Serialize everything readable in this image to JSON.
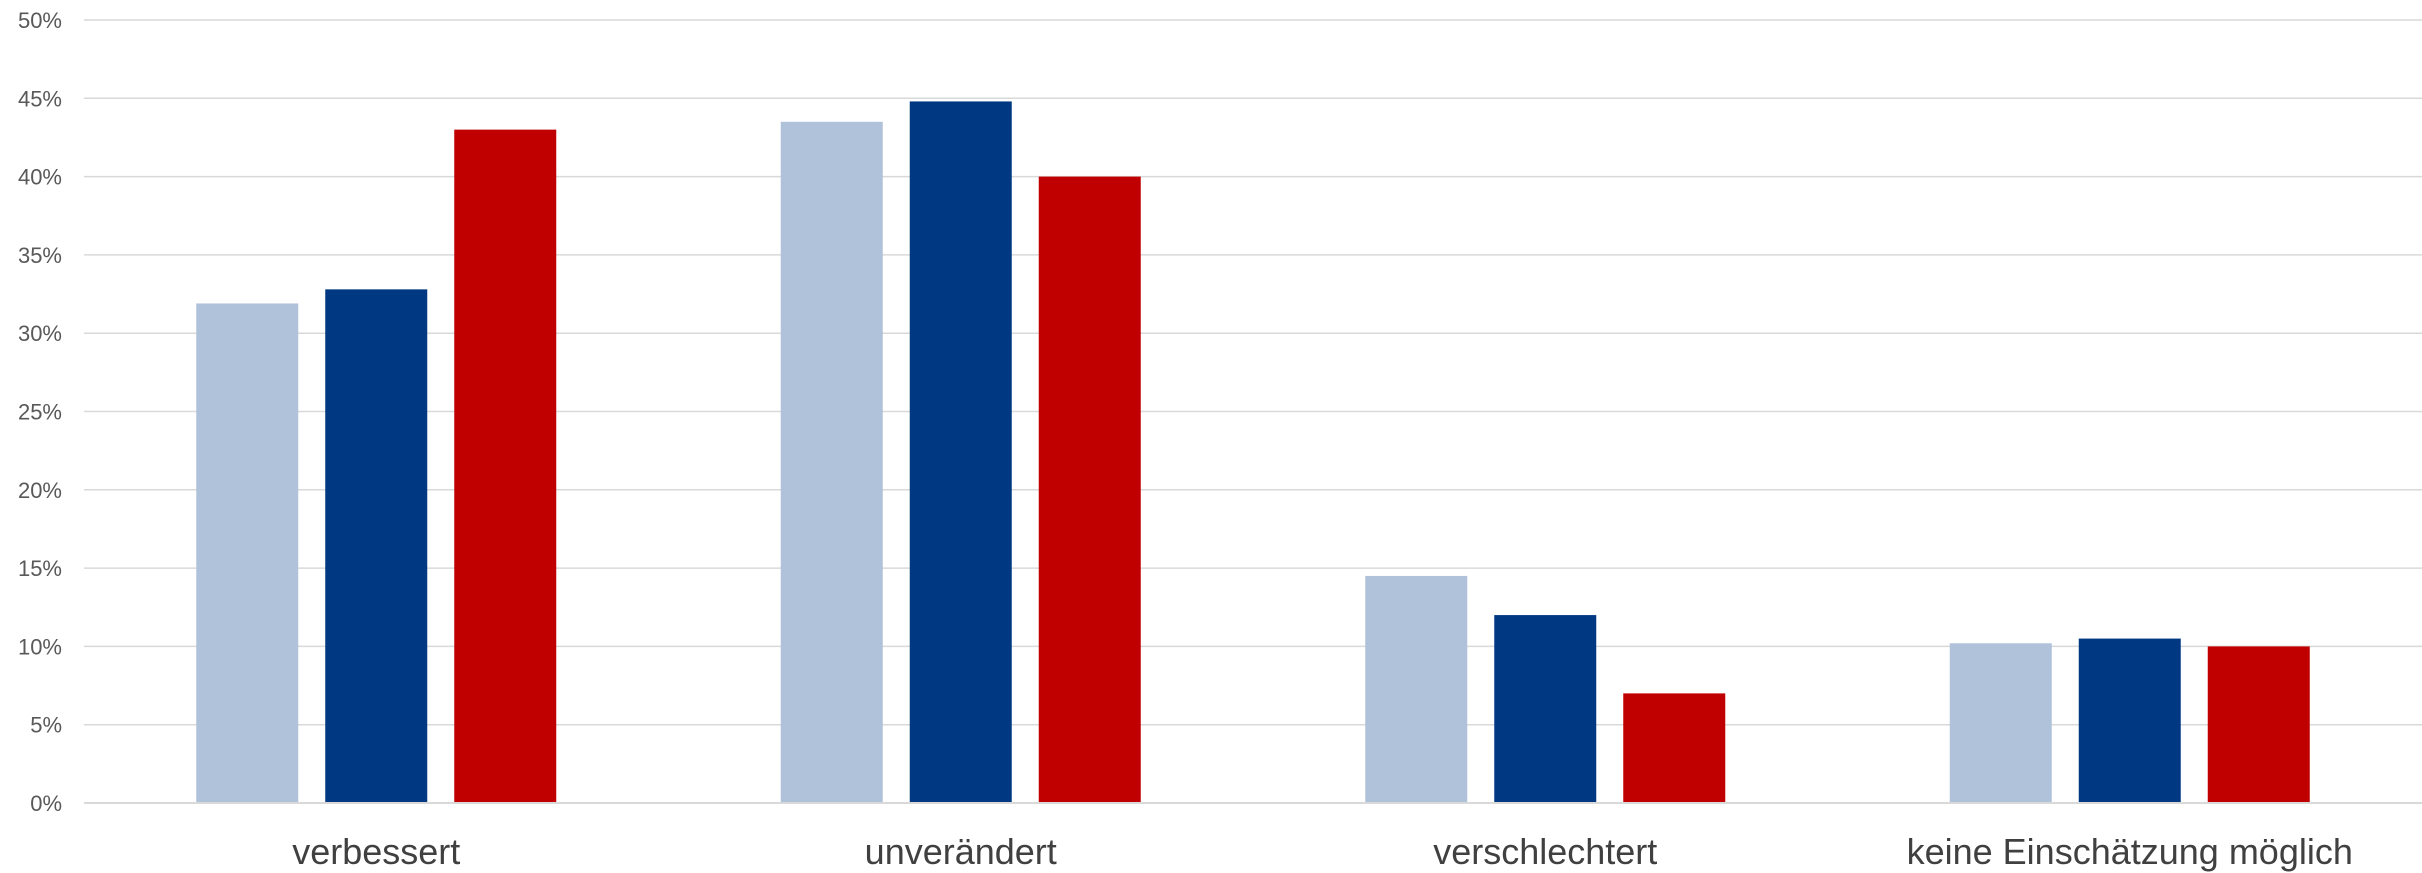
{
  "chart_data": {
    "type": "bar",
    "categories": [
      "verbessert",
      "unverändert",
      "verschlechtert",
      "keine Einschätzung möglich"
    ],
    "series": [
      {
        "values": [
          31.9,
          43.5,
          14.5,
          10.2
        ],
        "color": "#b0c1da"
      },
      {
        "values": [
          32.8,
          44.8,
          12.0,
          10.5
        ],
        "color": "#003882"
      },
      {
        "values": [
          43.0,
          40.0,
          7.0,
          10.0
        ],
        "color": "#c00000"
      }
    ],
    "yticks": [
      "0%",
      "5%",
      "10%",
      "15%",
      "20%",
      "25%",
      "30%",
      "35%",
      "40%",
      "45%",
      "50%"
    ],
    "ylim": [
      0,
      50
    ],
    "grid": true,
    "title": "",
    "xlabel": "",
    "ylabel": ""
  }
}
